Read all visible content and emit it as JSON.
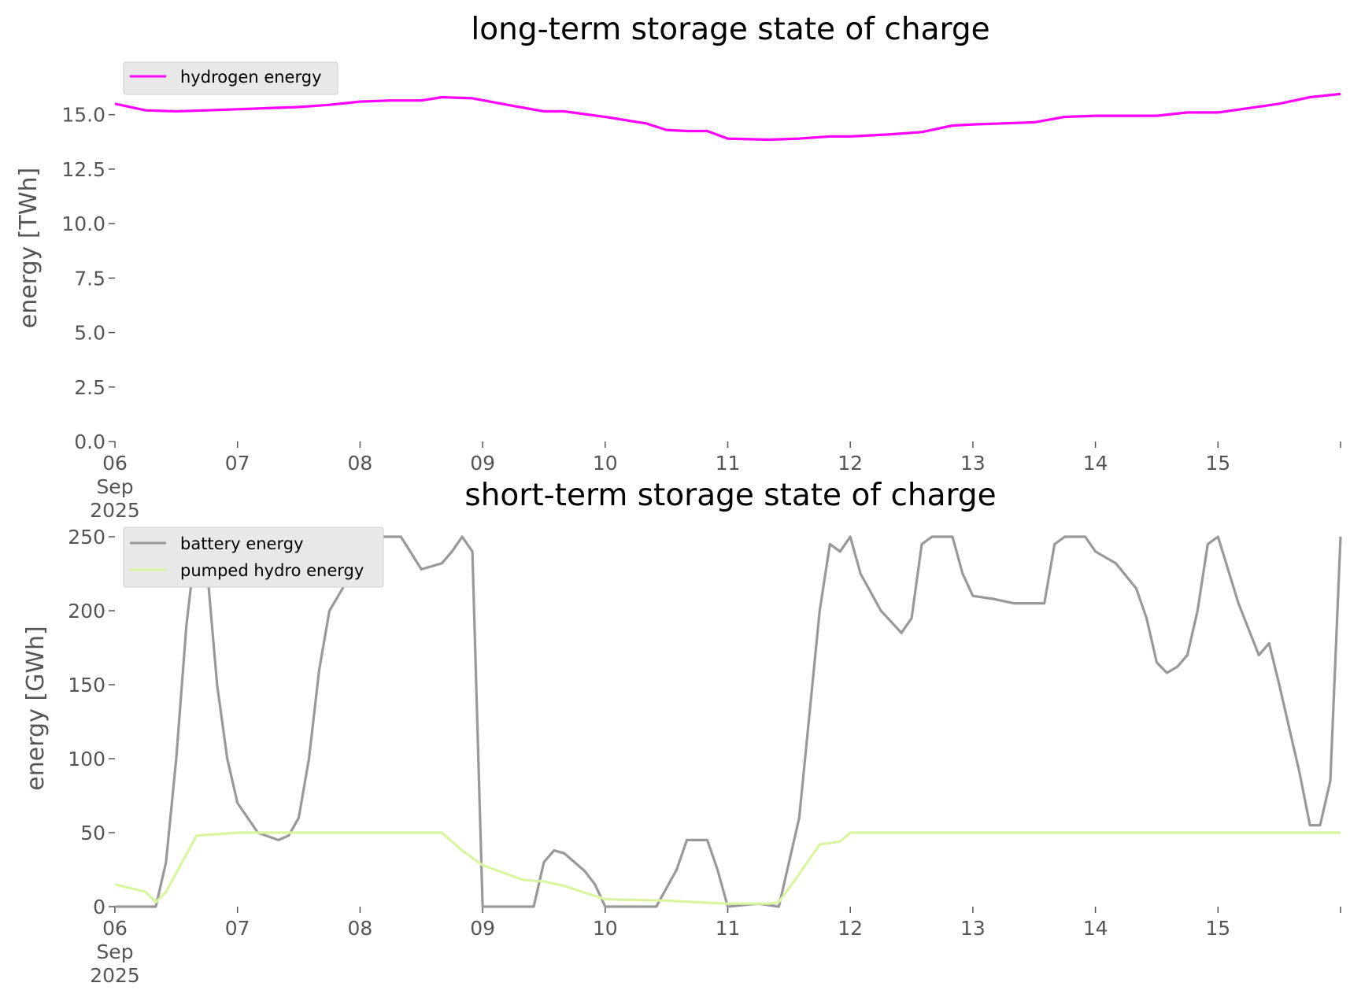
{
  "chart_data": [
    {
      "type": "line",
      "title": "long-term storage state of charge",
      "ylabel": "energy [TWh]",
      "xlabel": "",
      "xlim": [
        "2025-09-06",
        "2025-09-16"
      ],
      "ylim": [
        0,
        16.0
      ],
      "yticks": [
        "0.0",
        "2.5",
        "5.0",
        "7.5",
        "10.0",
        "12.5",
        "15.0"
      ],
      "xticks": [
        "06\nSep\n2025",
        "07",
        "08",
        "09",
        "10",
        "11",
        "12",
        "13",
        "14",
        "15"
      ],
      "grid": false,
      "legend_position": "upper left",
      "series": [
        {
          "name": "hydrogen energy",
          "color": "#ff00ff",
          "x": [
            "2025-09-06 00:00",
            "2025-09-06 06:00",
            "2025-09-06 12:00",
            "2025-09-06 18:00",
            "2025-09-07 00:00",
            "2025-09-07 06:00",
            "2025-09-07 12:00",
            "2025-09-07 18:00",
            "2025-09-08 00:00",
            "2025-09-08 06:00",
            "2025-09-08 12:00",
            "2025-09-08 16:00",
            "2025-09-08 22:00",
            "2025-09-09 06:00",
            "2025-09-09 12:00",
            "2025-09-09 16:00",
            "2025-09-10 00:00",
            "2025-09-10 08:00",
            "2025-09-10 12:00",
            "2025-09-10 16:00",
            "2025-09-10 20:00",
            "2025-09-11 00:00",
            "2025-09-11 08:00",
            "2025-09-11 14:00",
            "2025-09-11 20:00",
            "2025-09-12 00:00",
            "2025-09-12 08:00",
            "2025-09-12 14:00",
            "2025-09-12 20:00",
            "2025-09-13 00:00",
            "2025-09-13 06:00",
            "2025-09-13 12:00",
            "2025-09-13 18:00",
            "2025-09-14 00:00",
            "2025-09-14 08:00",
            "2025-09-14 12:00",
            "2025-09-14 18:00",
            "2025-09-15 00:00",
            "2025-09-15 06:00",
            "2025-09-15 12:00",
            "2025-09-15 18:00",
            "2025-09-16 00:00"
          ],
          "values": [
            15.5,
            15.2,
            15.15,
            15.2,
            15.25,
            15.3,
            15.35,
            15.45,
            15.6,
            15.65,
            15.65,
            15.8,
            15.75,
            15.4,
            15.15,
            15.15,
            14.9,
            14.6,
            14.3,
            14.25,
            14.25,
            13.9,
            13.85,
            13.9,
            14.0,
            14.0,
            14.1,
            14.2,
            14.5,
            14.55,
            14.6,
            14.65,
            14.9,
            14.95,
            14.95,
            14.95,
            15.1,
            15.1,
            15.3,
            15.5,
            15.8,
            15.95
          ]
        }
      ]
    },
    {
      "type": "line",
      "title": "short-term storage state of charge",
      "ylabel": "energy [GWh]",
      "xlabel": "",
      "xlim": [
        "2025-09-06",
        "2025-09-16"
      ],
      "ylim": [
        0,
        250
      ],
      "yticks": [
        "0",
        "50",
        "100",
        "150",
        "200",
        "250"
      ],
      "xticks": [
        "06\nSep\n2025",
        "07",
        "08",
        "09",
        "10",
        "11",
        "12",
        "13",
        "14",
        "15"
      ],
      "grid": false,
      "legend_position": "upper left",
      "series": [
        {
          "name": "battery energy",
          "color": "#999999",
          "x": [
            "2025-09-06 00:00",
            "2025-09-06 08:00",
            "2025-09-06 10:00",
            "2025-09-06 12:00",
            "2025-09-06 14:00",
            "2025-09-06 16:00",
            "2025-09-06 18:00",
            "2025-09-06 20:00",
            "2025-09-06 22:00",
            "2025-09-07 00:00",
            "2025-09-07 04:00",
            "2025-09-07 08:00",
            "2025-09-07 10:00",
            "2025-09-07 12:00",
            "2025-09-07 14:00",
            "2025-09-07 16:00",
            "2025-09-07 18:00",
            "2025-09-08 00:00",
            "2025-09-08 04:00",
            "2025-09-08 06:00",
            "2025-09-08 08:00",
            "2025-09-08 12:00",
            "2025-09-08 16:00",
            "2025-09-08 18:00",
            "2025-09-08 20:00",
            "2025-09-08 22:00",
            "2025-09-09 00:00",
            "2025-09-09 10:00",
            "2025-09-09 12:00",
            "2025-09-09 14:00",
            "2025-09-09 16:00",
            "2025-09-09 20:00",
            "2025-09-09 22:00",
            "2025-09-10 00:00",
            "2025-09-10 10:00",
            "2025-09-10 14:00",
            "2025-09-10 16:00",
            "2025-09-10 20:00",
            "2025-09-10 22:00",
            "2025-09-11 00:00",
            "2025-09-11 06:00",
            "2025-09-11 10:00",
            "2025-09-11 14:00",
            "2025-09-11 16:00",
            "2025-09-11 18:00",
            "2025-09-11 20:00",
            "2025-09-11 22:00",
            "2025-09-12 00:00",
            "2025-09-12 02:00",
            "2025-09-12 06:00",
            "2025-09-12 10:00",
            "2025-09-12 12:00",
            "2025-09-12 14:00",
            "2025-09-12 16:00",
            "2025-09-12 20:00",
            "2025-09-12 22:00",
            "2025-09-13 00:00",
            "2025-09-13 04:00",
            "2025-09-13 08:00",
            "2025-09-13 14:00",
            "2025-09-13 16:00",
            "2025-09-13 18:00",
            "2025-09-13 22:00",
            "2025-09-14 00:00",
            "2025-09-14 04:00",
            "2025-09-14 08:00",
            "2025-09-14 10:00",
            "2025-09-14 12:00",
            "2025-09-14 14:00",
            "2025-09-14 16:00",
            "2025-09-14 18:00",
            "2025-09-14 20:00",
            "2025-09-14 22:00",
            "2025-09-15 00:00",
            "2025-09-15 04:00",
            "2025-09-15 08:00",
            "2025-09-15 10:00",
            "2025-09-15 12:00",
            "2025-09-15 14:00",
            "2025-09-15 16:00",
            "2025-09-15 18:00",
            "2025-09-15 20:00",
            "2025-09-15 22:00",
            "2025-09-16 00:00"
          ],
          "values": [
            0,
            0,
            30,
            100,
            190,
            250,
            230,
            150,
            100,
            70,
            50,
            45,
            48,
            60,
            100,
            160,
            200,
            235,
            250,
            250,
            250,
            228,
            232,
            240,
            250,
            240,
            0,
            0,
            30,
            38,
            36,
            24,
            15,
            0,
            0,
            25,
            45,
            45,
            25,
            0,
            2,
            0,
            60,
            130,
            200,
            245,
            240,
            250,
            225,
            200,
            185,
            195,
            245,
            250,
            250,
            225,
            210,
            208,
            205,
            205,
            245,
            250,
            250,
            240,
            232,
            215,
            195,
            165,
            158,
            162,
            170,
            200,
            245,
            250,
            205,
            170,
            178,
            150,
            120,
            90,
            55,
            55,
            85,
            250
          ]
        },
        {
          "name": "pumped hydro energy",
          "color": "#d9f5a0",
          "x": [
            "2025-09-06 00:00",
            "2025-09-06 06:00",
            "2025-09-06 08:00",
            "2025-09-06 10:00",
            "2025-09-06 16:00",
            "2025-09-07 00:00",
            "2025-09-08 16:00",
            "2025-09-08 20:00",
            "2025-09-09 00:00",
            "2025-09-09 08:00",
            "2025-09-09 12:00",
            "2025-09-09 16:00",
            "2025-09-10 00:00",
            "2025-09-10 12:00",
            "2025-09-10 18:00",
            "2025-09-11 00:00",
            "2025-09-11 08:00",
            "2025-09-11 10:00",
            "2025-09-11 14:00",
            "2025-09-11 18:00",
            "2025-09-11 20:00",
            "2025-09-11 22:00",
            "2025-09-12 00:00",
            "2025-09-16 00:00"
          ],
          "values": [
            15,
            10,
            3,
            10,
            48,
            50,
            50,
            38,
            28,
            18,
            17,
            14,
            5,
            4,
            3,
            2,
            2,
            3,
            22,
            42,
            43,
            44,
            50,
            50
          ]
        }
      ]
    }
  ]
}
